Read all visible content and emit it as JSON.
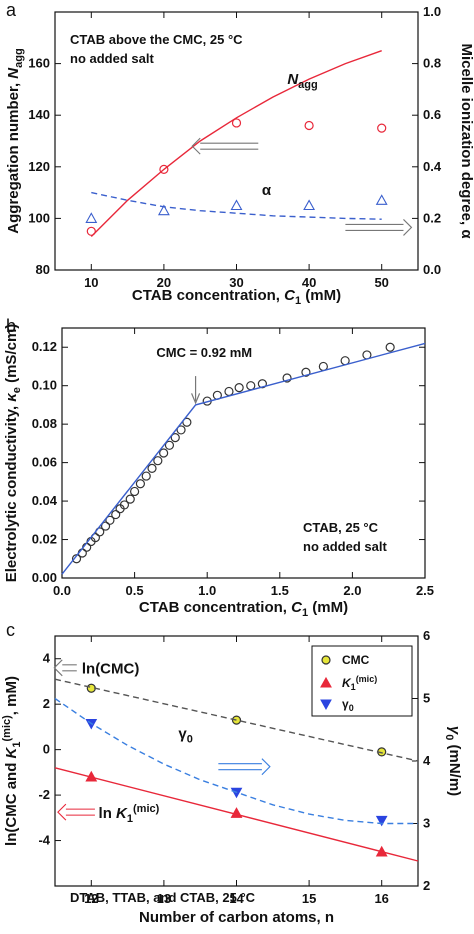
{
  "chart_data": [
    {
      "panel": "a",
      "type": "scatter",
      "xlabel": "CTAB concentration, C1 (mM)",
      "xlim": [
        5,
        55
      ],
      "xticks": [
        10,
        20,
        30,
        40,
        50
      ],
      "ylabel_left": "Aggregation number, Nagg",
      "ylim_left": [
        80,
        180
      ],
      "yticks_left": [
        80,
        100,
        120,
        140,
        160
      ],
      "ylabel_right": "Micelle ionization degree, α",
      "ylim_right": [
        0,
        1.0
      ],
      "yticks_right": [
        0,
        0.2,
        0.4,
        0.6,
        0.8,
        1.0
      ],
      "annotations": [
        "CTAB above the CMC, 25 °C",
        "no added salt"
      ],
      "series": [
        {
          "name": "Nagg",
          "axis": "left",
          "marker": "circle",
          "color": "#e8283a",
          "x": [
            10,
            20,
            30,
            40,
            50
          ],
          "y": [
            95,
            119,
            137,
            136,
            135
          ]
        },
        {
          "name": "Nagg fit",
          "axis": "left",
          "style": "solid",
          "color": "#e8283a",
          "x": [
            10,
            15,
            20,
            25,
            30,
            35,
            40,
            45,
            50
          ],
          "y": [
            93,
            107,
            119,
            130,
            139,
            147,
            154,
            160,
            165
          ]
        },
        {
          "name": "α",
          "axis": "right",
          "marker": "triangle",
          "color": "#3a5fcd",
          "x": [
            10,
            20,
            30,
            40,
            50
          ],
          "y": [
            0.2,
            0.23,
            0.25,
            0.25,
            0.27
          ]
        },
        {
          "name": "α fit",
          "axis": "right",
          "style": "dashed",
          "color": "#3a5fcd",
          "x": [
            10,
            15,
            20,
            25,
            30,
            35,
            40,
            45,
            50
          ],
          "y": [
            0.3,
            0.27,
            0.245,
            0.23,
            0.22,
            0.21,
            0.205,
            0.2,
            0.197
          ]
        }
      ]
    },
    {
      "panel": "b",
      "type": "scatter",
      "xlabel": "CTAB concentration, C1 (mM)",
      "xlim": [
        0,
        2.5
      ],
      "xticks": [
        0,
        0.5,
        1.0,
        1.5,
        2.0,
        2.5
      ],
      "ylabel": "Electrolytic conductivity, κe (mS/cm)",
      "ylim": [
        0,
        0.13
      ],
      "yticks": [
        0,
        0.02,
        0.04,
        0.06,
        0.08,
        0.1,
        0.12
      ],
      "annotations": [
        "CMC = 0.92 mM",
        "CTAB, 25 °C",
        "no added salt"
      ],
      "series": [
        {
          "name": "data",
          "marker": "circle",
          "color": "#333333",
          "x": [
            0.1,
            0.14,
            0.17,
            0.2,
            0.23,
            0.26,
            0.3,
            0.33,
            0.37,
            0.4,
            0.43,
            0.47,
            0.5,
            0.54,
            0.58,
            0.62,
            0.66,
            0.7,
            0.74,
            0.78,
            0.82,
            0.86,
            1.0,
            1.07,
            1.15,
            1.22,
            1.3,
            1.38,
            1.55,
            1.68,
            1.8,
            1.95,
            2.1,
            2.26
          ],
          "y": [
            0.01,
            0.013,
            0.016,
            0.019,
            0.021,
            0.024,
            0.027,
            0.03,
            0.033,
            0.036,
            0.038,
            0.041,
            0.045,
            0.049,
            0.053,
            0.057,
            0.061,
            0.065,
            0.069,
            0.073,
            0.077,
            0.081,
            0.092,
            0.095,
            0.097,
            0.099,
            0.1,
            0.101,
            0.104,
            0.107,
            0.11,
            0.113,
            0.116,
            0.12
          ]
        },
        {
          "name": "fit",
          "style": "solid",
          "color": "#3a5fcd",
          "x": [
            0,
            0.92,
            2.5
          ],
          "y": [
            0.002,
            0.09,
            0.122
          ]
        }
      ]
    },
    {
      "panel": "c",
      "type": "scatter",
      "xlabel": "Number of carbon atoms, n",
      "xlim": [
        11.5,
        16.5
      ],
      "xticks": [
        12,
        13,
        14,
        15,
        16
      ],
      "ylabel_left": "ln(CMC and K1(mic), mM)",
      "ylim_left": [
        -6,
        5
      ],
      "yticks_left": [
        -4,
        -2,
        0,
        2,
        4
      ],
      "ylabel_right": "γ0 (mN/m)",
      "ylim_right": [
        2,
        6
      ],
      "yticks_right": [
        2,
        3,
        4,
        5,
        6
      ],
      "annotations": [
        "ln(CMC)",
        "γ0",
        "ln K1(mic)",
        "DTAB, TTAB, and CTAB, 25 °C"
      ],
      "legend": {
        "placement": "top-right",
        "entries": [
          "CMC",
          "K1(mic)",
          "γ0"
        ]
      },
      "series": [
        {
          "name": "CMC",
          "axis": "left",
          "marker": "circle",
          "color": "#e6e63a",
          "x": [
            12,
            14,
            16
          ],
          "y": [
            2.7,
            1.3,
            -0.1
          ]
        },
        {
          "name": "CMC fit",
          "axis": "left",
          "style": "dashed",
          "color": "#555555",
          "x": [
            11.5,
            16.5
          ],
          "y": [
            3.1,
            -0.5
          ]
        },
        {
          "name": "K1(mic)",
          "axis": "left",
          "marker": "triangle-up",
          "color": "#e8283a",
          "x": [
            12,
            14,
            16
          ],
          "y": [
            -1.2,
            -2.8,
            -4.5
          ]
        },
        {
          "name": "K1(mic) fit",
          "axis": "left",
          "style": "solid",
          "color": "#e8283a",
          "x": [
            11.5,
            16.5
          ],
          "y": [
            -0.8,
            -4.9
          ]
        },
        {
          "name": "γ0",
          "axis": "right",
          "marker": "triangle-down",
          "color": "#2a44e0",
          "x": [
            12,
            14,
            16
          ],
          "y": [
            4.6,
            3.5,
            3.05
          ]
        },
        {
          "name": "γ0 fit",
          "axis": "right",
          "style": "dashed",
          "color": "#3a7fe0",
          "x": [
            11.5,
            12,
            12.5,
            13,
            13.5,
            14,
            14.5,
            15,
            15.5,
            16,
            16.5
          ],
          "y": [
            5.0,
            4.6,
            4.25,
            3.95,
            3.7,
            3.5,
            3.3,
            3.15,
            3.05,
            3.0,
            3.0
          ]
        }
      ]
    }
  ]
}
